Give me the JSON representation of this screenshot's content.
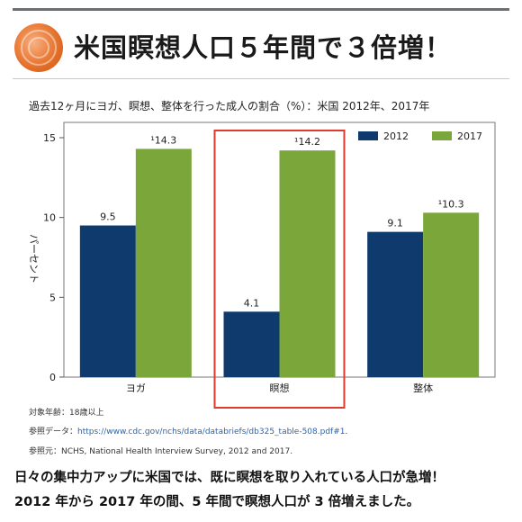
{
  "headline": "米国瞑想人口５年間で３倍増！",
  "chart_data": {
    "type": "bar",
    "title": "過去12ヶ月にヨガ、瞑想、整体を行った成人の割合（%）：米国 2012年、2017年",
    "ylabel": "パーセント",
    "xlabel": "",
    "categories": [
      "ヨガ",
      "瞑想",
      "整体"
    ],
    "series": [
      {
        "name": "2012",
        "values": [
          9.5,
          4.1,
          9.1
        ],
        "labels": [
          "9.5",
          "4.1",
          "9.1"
        ],
        "color": "#0f3a6e"
      },
      {
        "name": "2017",
        "values": [
          14.3,
          14.2,
          10.3
        ],
        "labels": [
          "¹14.3",
          "¹14.2",
          "¹10.3"
        ],
        "color": "#7aa63a"
      }
    ],
    "ylim": [
      0,
      15
    ],
    "yticks": [
      0,
      5,
      10,
      15
    ],
    "legend_position": "top-right",
    "highlight_category": "瞑想",
    "highlight_color": "#e03a2c",
    "grid": false
  },
  "footnotes": {
    "target_age": "対象年齢：18歳以上",
    "reference_label": "参照データ：",
    "reference_url": "https://www.cdc.gov/nchs/data/databriefs/db325_table-508.pdf#1",
    "reference_suffix": ".",
    "source": "参照元：NCHS, National Health Interview Survey, 2012 and 2017."
  },
  "caption": {
    "line1": "日々の集中力アップに米国では、既に瞑想を取り入れている人口が急増！",
    "line2": "2012 年から 2017 年の間、5 年間で瞑想人口が 3 倍増えました。"
  }
}
